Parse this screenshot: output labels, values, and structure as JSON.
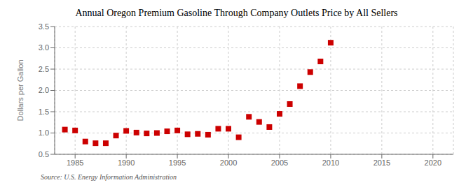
{
  "chart_data": {
    "type": "scatter",
    "title": "Annual Oregon Premium Gasoline Through Company Outlets Price by All Sellers",
    "y_label": "Dollars per Gallon",
    "source": "Source: U.S. Energy Information Administration",
    "x": [
      1984,
      1985,
      1986,
      1987,
      1988,
      1989,
      1990,
      1991,
      1992,
      1993,
      1994,
      1995,
      1996,
      1997,
      1998,
      1999,
      2000,
      2001,
      2002,
      2003,
      2004,
      2005,
      2006,
      2007,
      2008,
      2009,
      2010
    ],
    "values": [
      1.08,
      1.06,
      0.8,
      0.76,
      0.76,
      0.94,
      1.05,
      1.01,
      0.99,
      1.0,
      1.04,
      1.06,
      0.97,
      0.98,
      0.96,
      1.1,
      1.1,
      0.9,
      1.38,
      1.26,
      1.14,
      1.45,
      1.68,
      2.1,
      2.43,
      2.68,
      3.12
    ],
    "color": "#cc0000",
    "marker": "square",
    "xlim": [
      1983,
      2022
    ],
    "ylim": [
      0.5,
      3.5
    ],
    "xticks": [
      1985,
      1990,
      1995,
      2000,
      2005,
      2010,
      2015,
      2020
    ],
    "yticks": [
      0.5,
      {
        "value": 1.0,
        "label": "1.0"
      },
      1.5,
      {
        "value": 2.0,
        "label": "2.0"
      },
      2.5,
      {
        "value": 3.0,
        "label": "3.0"
      },
      3.5
    ],
    "grid": true
  }
}
